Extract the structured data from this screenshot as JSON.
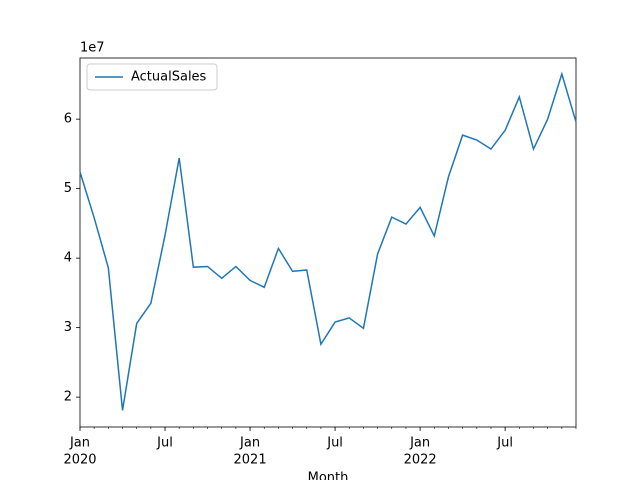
{
  "chart_data": {
    "type": "line",
    "x": [
      "2020-01",
      "2020-02",
      "2020-03",
      "2020-04",
      "2020-05",
      "2020-06",
      "2020-07",
      "2020-08",
      "2020-09",
      "2020-10",
      "2020-11",
      "2020-12",
      "2021-01",
      "2021-02",
      "2021-03",
      "2021-04",
      "2021-05",
      "2021-06",
      "2021-07",
      "2021-08",
      "2021-09",
      "2021-10",
      "2021-11",
      "2021-12",
      "2022-01",
      "2022-02",
      "2022-03",
      "2022-04",
      "2022-05",
      "2022-06",
      "2022-07",
      "2022-08",
      "2022-09",
      "2022-10",
      "2022-11",
      "2022-12"
    ],
    "series": [
      {
        "name": "ActualSales",
        "color": "#1f77b4",
        "values": [
          5.24,
          4.58,
          3.86,
          1.81,
          3.06,
          3.35,
          4.33,
          5.44,
          3.87,
          3.88,
          3.71,
          3.88,
          3.68,
          3.58,
          4.14,
          3.81,
          3.83,
          2.76,
          3.08,
          3.14,
          2.99,
          4.06,
          4.59,
          4.49,
          4.73,
          4.32,
          5.17,
          5.77,
          5.7,
          5.57,
          5.84,
          6.32,
          5.57,
          6.0,
          6.65,
          5.96
        ]
      }
    ],
    "xlabel": "Month",
    "xlim": [
      "2020-01",
      "2022-12"
    ],
    "xticks": [
      {
        "value": "2020-01",
        "label": "Jan"
      },
      {
        "value": "2020-07",
        "label": "Jul"
      },
      {
        "value": "2021-01",
        "label": "Jan"
      },
      {
        "value": "2021-07",
        "label": "Jul"
      },
      {
        "value": "2022-01",
        "label": "Jan"
      },
      {
        "value": "2022-07",
        "label": "Jul"
      }
    ],
    "xtick_years": [
      {
        "value": "2020-01",
        "label": "2020"
      },
      {
        "value": "2021-01",
        "label": "2021"
      },
      {
        "value": "2022-01",
        "label": "2022"
      }
    ],
    "ylim": [
      1.57,
      6.88
    ],
    "yticks": [
      2,
      3,
      4,
      5,
      6
    ],
    "y_offset_label": "1e7",
    "legend": "upper left"
  }
}
